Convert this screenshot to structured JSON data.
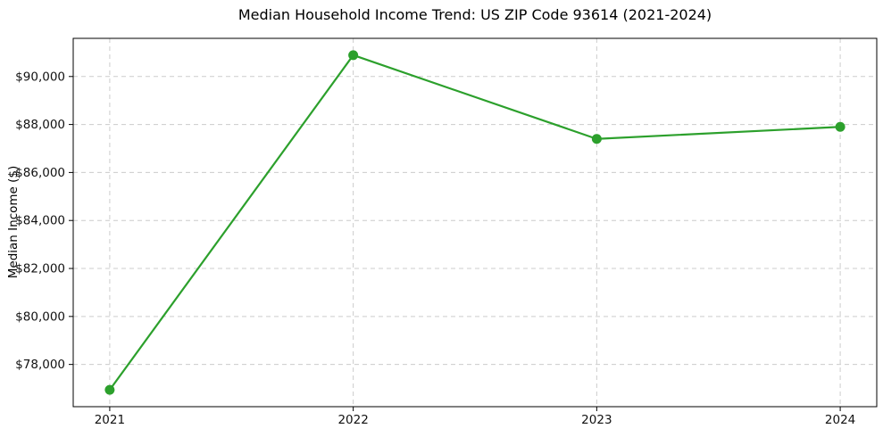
{
  "figure": {
    "background": "#ffffff"
  },
  "chart_data": {
    "type": "line",
    "title": "Median Household Income Trend: US ZIP Code 93614 (2021-2024)",
    "xlabel": "",
    "ylabel": "Median Income ($)",
    "x": [
      2021,
      2022,
      2023,
      2024
    ],
    "values": [
      76940,
      90890,
      87400,
      87900
    ],
    "series": [
      {
        "name": "Median Household Income",
        "values": [
          76940,
          90890,
          87400,
          87900
        ]
      }
    ],
    "x_ticks": [
      {
        "value": 2021,
        "label": "2021"
      },
      {
        "value": 2022,
        "label": "2022"
      },
      {
        "value": 2023,
        "label": "2023"
      },
      {
        "value": 2024,
        "label": "2024"
      }
    ],
    "y_ticks": [
      {
        "value": 78000,
        "label": "$78,000"
      },
      {
        "value": 80000,
        "label": "$80,000"
      },
      {
        "value": 82000,
        "label": "$82,000"
      },
      {
        "value": 84000,
        "label": "$84,000"
      },
      {
        "value": 86000,
        "label": "$86,000"
      },
      {
        "value": 88000,
        "label": "$88,000"
      },
      {
        "value": 90000,
        "label": "$90,000"
      }
    ],
    "xlim": [
      2020.85,
      2024.15
    ],
    "ylim": [
      76240,
      91590
    ],
    "grid": true,
    "legend": false,
    "marker": "circle",
    "line_color": "#2ca02c",
    "grid_color": "#cccccc",
    "spine_color": "#000000",
    "tick_color": "#000000"
  }
}
